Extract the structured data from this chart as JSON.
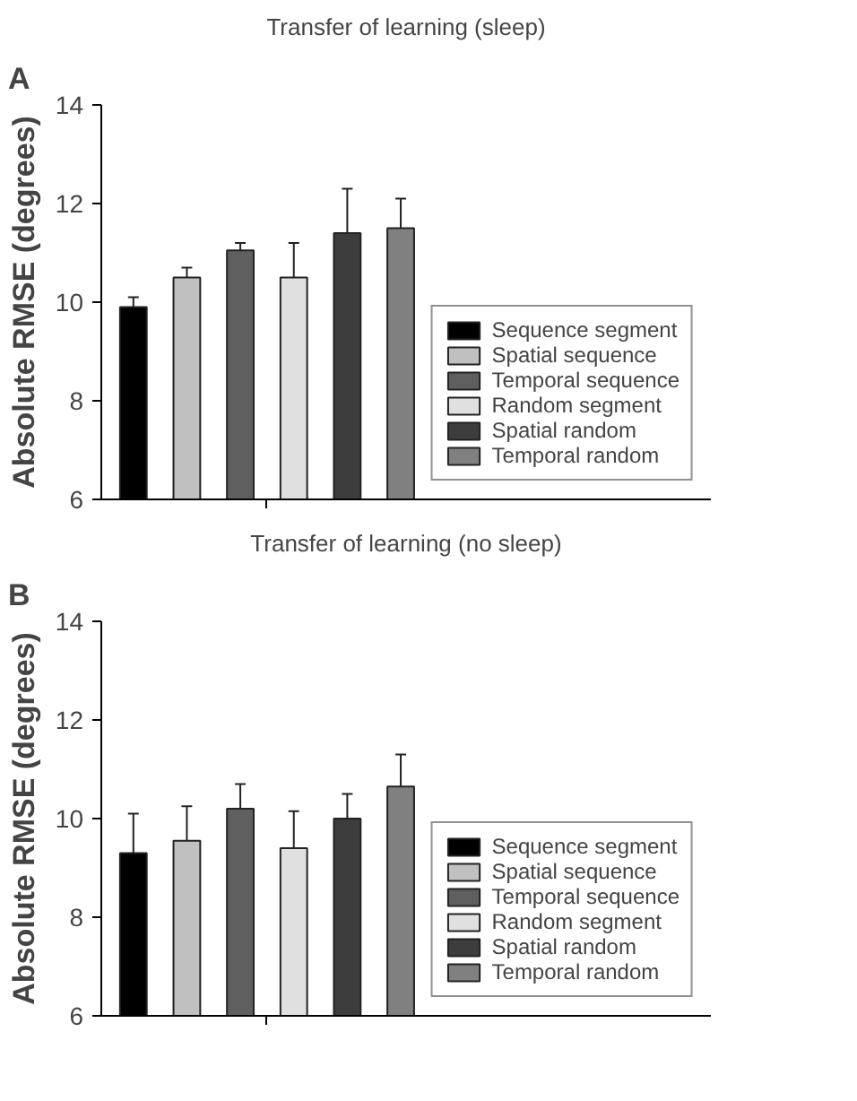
{
  "chart_data": [
    {
      "type": "bar",
      "title": "Transfer of learning (sleep)",
      "ylabel": "Absolute RMSE (degrees)",
      "annotations": [
        "A"
      ],
      "categories": [
        null
      ],
      "ylim": [
        6,
        14
      ],
      "yticks": [
        6,
        8,
        10,
        12,
        14
      ],
      "grid": false,
      "legend": "right",
      "tick_labels": "y",
      "series": [
        {
          "name": "Sequence segment",
          "color": "#000000",
          "values": [
            9.9
          ],
          "errors": [
            [
              9.9,
              10.1
            ]
          ]
        },
        {
          "name": "Spatial sequence",
          "color": "#c0c0c0",
          "values": [
            10.5
          ],
          "errors": [
            [
              10.5,
              10.7
            ]
          ]
        },
        {
          "name": "Temporal sequence",
          "color": "#5f5f5f",
          "values": [
            11.05
          ],
          "errors": [
            [
              11.05,
              11.2
            ]
          ]
        },
        {
          "name": "Random segment",
          "color": "#e0e0e0",
          "values": [
            10.5
          ],
          "errors": [
            [
              10.5,
              11.2
            ]
          ]
        },
        {
          "name": "Spatial random",
          "color": "#3d3d3d",
          "values": [
            11.4
          ],
          "errors": [
            [
              11.4,
              12.3
            ]
          ]
        },
        {
          "name": "Temporal random",
          "color": "#808080",
          "values": [
            11.5
          ],
          "errors": [
            [
              11.5,
              12.1
            ]
          ]
        }
      ]
    },
    {
      "type": "bar",
      "title": "Transfer of learning (no sleep)",
      "ylabel": "Absolute RMSE (degrees)",
      "annotations": [
        "B"
      ],
      "categories": [
        null
      ],
      "ylim": [
        6,
        14
      ],
      "yticks": [
        6,
        8,
        10,
        12,
        14
      ],
      "grid": false,
      "legend": "right",
      "tick_labels": "y",
      "series": [
        {
          "name": "Sequence segment",
          "color": "#000000",
          "values": [
            9.3
          ],
          "errors": [
            [
              9.3,
              10.1
            ]
          ]
        },
        {
          "name": "Spatial sequence",
          "color": "#c0c0c0",
          "values": [
            9.55
          ],
          "errors": [
            [
              9.55,
              10.25
            ]
          ]
        },
        {
          "name": "Temporal sequence",
          "color": "#5f5f5f",
          "values": [
            10.2
          ],
          "errors": [
            [
              10.2,
              10.7
            ]
          ]
        },
        {
          "name": "Random segment",
          "color": "#e0e0e0",
          "values": [
            9.4
          ],
          "errors": [
            [
              9.4,
              10.15
            ]
          ]
        },
        {
          "name": "Spatial random",
          "color": "#3d3d3d",
          "values": [
            10.0
          ],
          "errors": [
            [
              10.0,
              10.5
            ]
          ]
        },
        {
          "name": "Temporal random",
          "color": "#808080",
          "values": [
            10.65
          ],
          "errors": [
            [
              10.65,
              11.3
            ]
          ]
        }
      ]
    }
  ]
}
